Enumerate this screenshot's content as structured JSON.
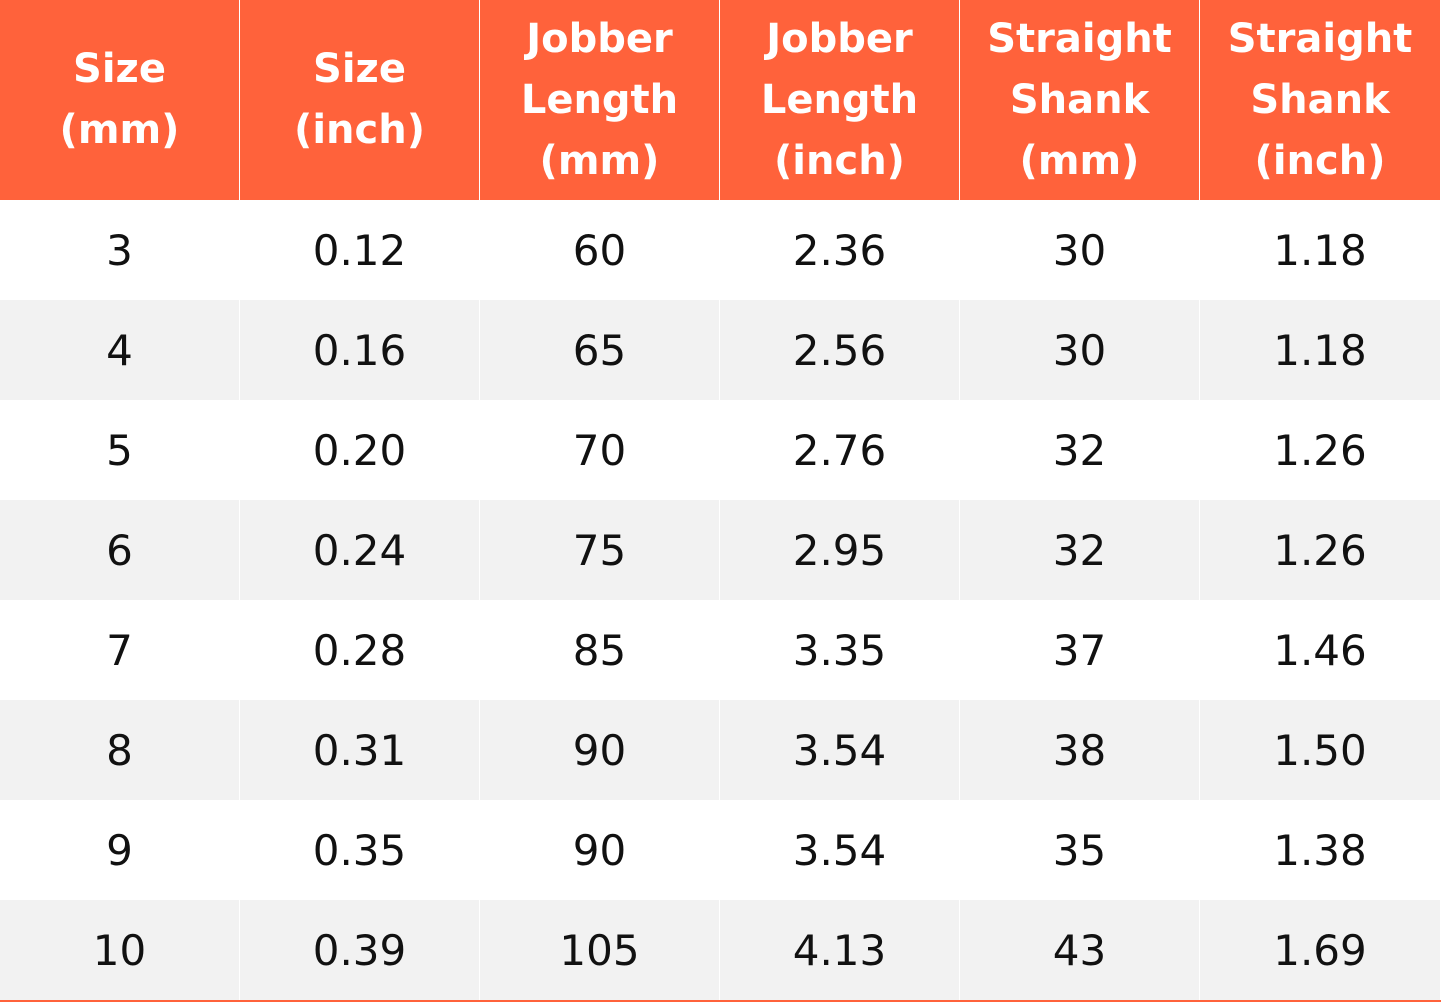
{
  "table": {
    "header": [
      "Size\n(mm)",
      "Size\n(inch)",
      "Jobber\nLength\n(mm)",
      "Jobber\nLength\n(inch)",
      "Straight\nShank\n(mm)",
      "Straight\nShank\n(inch)"
    ],
    "rows": [
      [
        "3",
        "0.12",
        "60",
        "2.36",
        "30",
        "1.18"
      ],
      [
        "4",
        "0.16",
        "65",
        "2.56",
        "30",
        "1.18"
      ],
      [
        "5",
        "0.20",
        "70",
        "2.76",
        "32",
        "1.26"
      ],
      [
        "6",
        "0.24",
        "75",
        "2.95",
        "32",
        "1.26"
      ],
      [
        "7",
        "0.28",
        "85",
        "3.35",
        "37",
        "1.46"
      ],
      [
        "8",
        "0.31",
        "90",
        "3.54",
        "38",
        "1.50"
      ],
      [
        "9",
        "0.35",
        "90",
        "3.54",
        "35",
        "1.38"
      ],
      [
        "10",
        "0.39",
        "105",
        "4.13",
        "43",
        "1.69"
      ]
    ]
  }
}
